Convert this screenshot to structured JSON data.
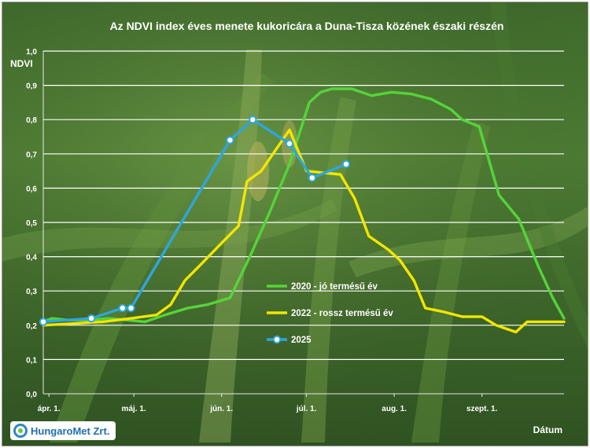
{
  "chart_data": {
    "type": "line",
    "title": "Az NDVI index éves menete kukoricára a Duna-Tisza közének északi részén",
    "ylabel": "NDVI",
    "xlabel": "Dátum",
    "ylim": [
      0,
      1.0
    ],
    "y_ticks": [
      "0,0",
      "0,1",
      "0,2",
      "0,3",
      "0,4",
      "0,5",
      "0,6",
      "0,7",
      "0,8",
      "0,9",
      "1,0"
    ],
    "x_axis_start": "03-30",
    "x_axis_end": "09-30",
    "x_ticks": [
      {
        "date": "04-01",
        "label": "ápr. 1."
      },
      {
        "date": "05-01",
        "label": "máj. 1."
      },
      {
        "date": "06-01",
        "label": "jún. 1."
      },
      {
        "date": "07-01",
        "label": "júl. 1."
      },
      {
        "date": "08-01",
        "label": "aug. 1."
      },
      {
        "date": "09-01",
        "label": "szept. 1."
      }
    ],
    "grid": true,
    "legend_position": "center-right",
    "series": [
      {
        "name": "2020 - jó termésű év",
        "color": "#55d43a",
        "marker": false,
        "points": [
          {
            "x": "03-30",
            "y": 0.21
          },
          {
            "x": "04-02",
            "y": 0.22
          },
          {
            "x": "04-08",
            "y": 0.215
          },
          {
            "x": "04-15",
            "y": 0.215
          },
          {
            "x": "04-22",
            "y": 0.22
          },
          {
            "x": "04-29",
            "y": 0.215
          },
          {
            "x": "05-05",
            "y": 0.21
          },
          {
            "x": "05-12",
            "y": 0.23
          },
          {
            "x": "05-20",
            "y": 0.25
          },
          {
            "x": "05-27",
            "y": 0.26
          },
          {
            "x": "06-04",
            "y": 0.28
          },
          {
            "x": "06-11",
            "y": 0.4
          },
          {
            "x": "06-18",
            "y": 0.53
          },
          {
            "x": "06-25",
            "y": 0.67
          },
          {
            "x": "07-02",
            "y": 0.85
          },
          {
            "x": "07-06",
            "y": 0.88
          },
          {
            "x": "07-10",
            "y": 0.89
          },
          {
            "x": "07-17",
            "y": 0.89
          },
          {
            "x": "07-24",
            "y": 0.87
          },
          {
            "x": "07-31",
            "y": 0.88
          },
          {
            "x": "08-07",
            "y": 0.875
          },
          {
            "x": "08-14",
            "y": 0.86
          },
          {
            "x": "08-21",
            "y": 0.83
          },
          {
            "x": "08-25",
            "y": 0.8
          },
          {
            "x": "08-31",
            "y": 0.78
          },
          {
            "x": "09-07",
            "y": 0.58
          },
          {
            "x": "09-14",
            "y": 0.51
          },
          {
            "x": "09-21",
            "y": 0.37
          },
          {
            "x": "09-26",
            "y": 0.28
          },
          {
            "x": "09-30",
            "y": 0.22
          }
        ]
      },
      {
        "name": "2022 - rossz termésű év",
        "color": "#f2e600",
        "marker": false,
        "points": [
          {
            "x": "03-30",
            "y": 0.2
          },
          {
            "x": "04-10",
            "y": 0.205
          },
          {
            "x": "04-20",
            "y": 0.21
          },
          {
            "x": "04-30",
            "y": 0.22
          },
          {
            "x": "05-09",
            "y": 0.23
          },
          {
            "x": "05-14",
            "y": 0.26
          },
          {
            "x": "05-19",
            "y": 0.33
          },
          {
            "x": "05-25",
            "y": 0.38
          },
          {
            "x": "06-01",
            "y": 0.44
          },
          {
            "x": "06-07",
            "y": 0.49
          },
          {
            "x": "06-10",
            "y": 0.62
          },
          {
            "x": "06-15",
            "y": 0.65
          },
          {
            "x": "06-20",
            "y": 0.71
          },
          {
            "x": "06-25",
            "y": 0.77
          },
          {
            "x": "07-01",
            "y": 0.65
          },
          {
            "x": "07-13",
            "y": 0.64
          },
          {
            "x": "07-18",
            "y": 0.57
          },
          {
            "x": "07-23",
            "y": 0.46
          },
          {
            "x": "07-30",
            "y": 0.42
          },
          {
            "x": "08-03",
            "y": 0.39
          },
          {
            "x": "08-08",
            "y": 0.33
          },
          {
            "x": "08-12",
            "y": 0.25
          },
          {
            "x": "08-18",
            "y": 0.24
          },
          {
            "x": "08-25",
            "y": 0.225
          },
          {
            "x": "09-01",
            "y": 0.225
          },
          {
            "x": "09-06",
            "y": 0.2
          },
          {
            "x": "09-13",
            "y": 0.18
          },
          {
            "x": "09-17",
            "y": 0.21
          },
          {
            "x": "09-30",
            "y": 0.21
          }
        ]
      },
      {
        "name": "2025",
        "color": "#2ea6dd",
        "marker": true,
        "points": [
          {
            "x": "03-30",
            "y": 0.21
          },
          {
            "x": "04-16",
            "y": 0.22
          },
          {
            "x": "04-27",
            "y": 0.25
          },
          {
            "x": "04-30",
            "y": 0.25
          },
          {
            "x": "06-04",
            "y": 0.74
          },
          {
            "x": "06-12",
            "y": 0.8
          },
          {
            "x": "06-25",
            "y": 0.73
          },
          {
            "x": "07-03",
            "y": 0.63
          },
          {
            "x": "07-15",
            "y": 0.67
          }
        ]
      }
    ]
  },
  "branding": {
    "logo_text": "HungaroMet Zrt."
  }
}
